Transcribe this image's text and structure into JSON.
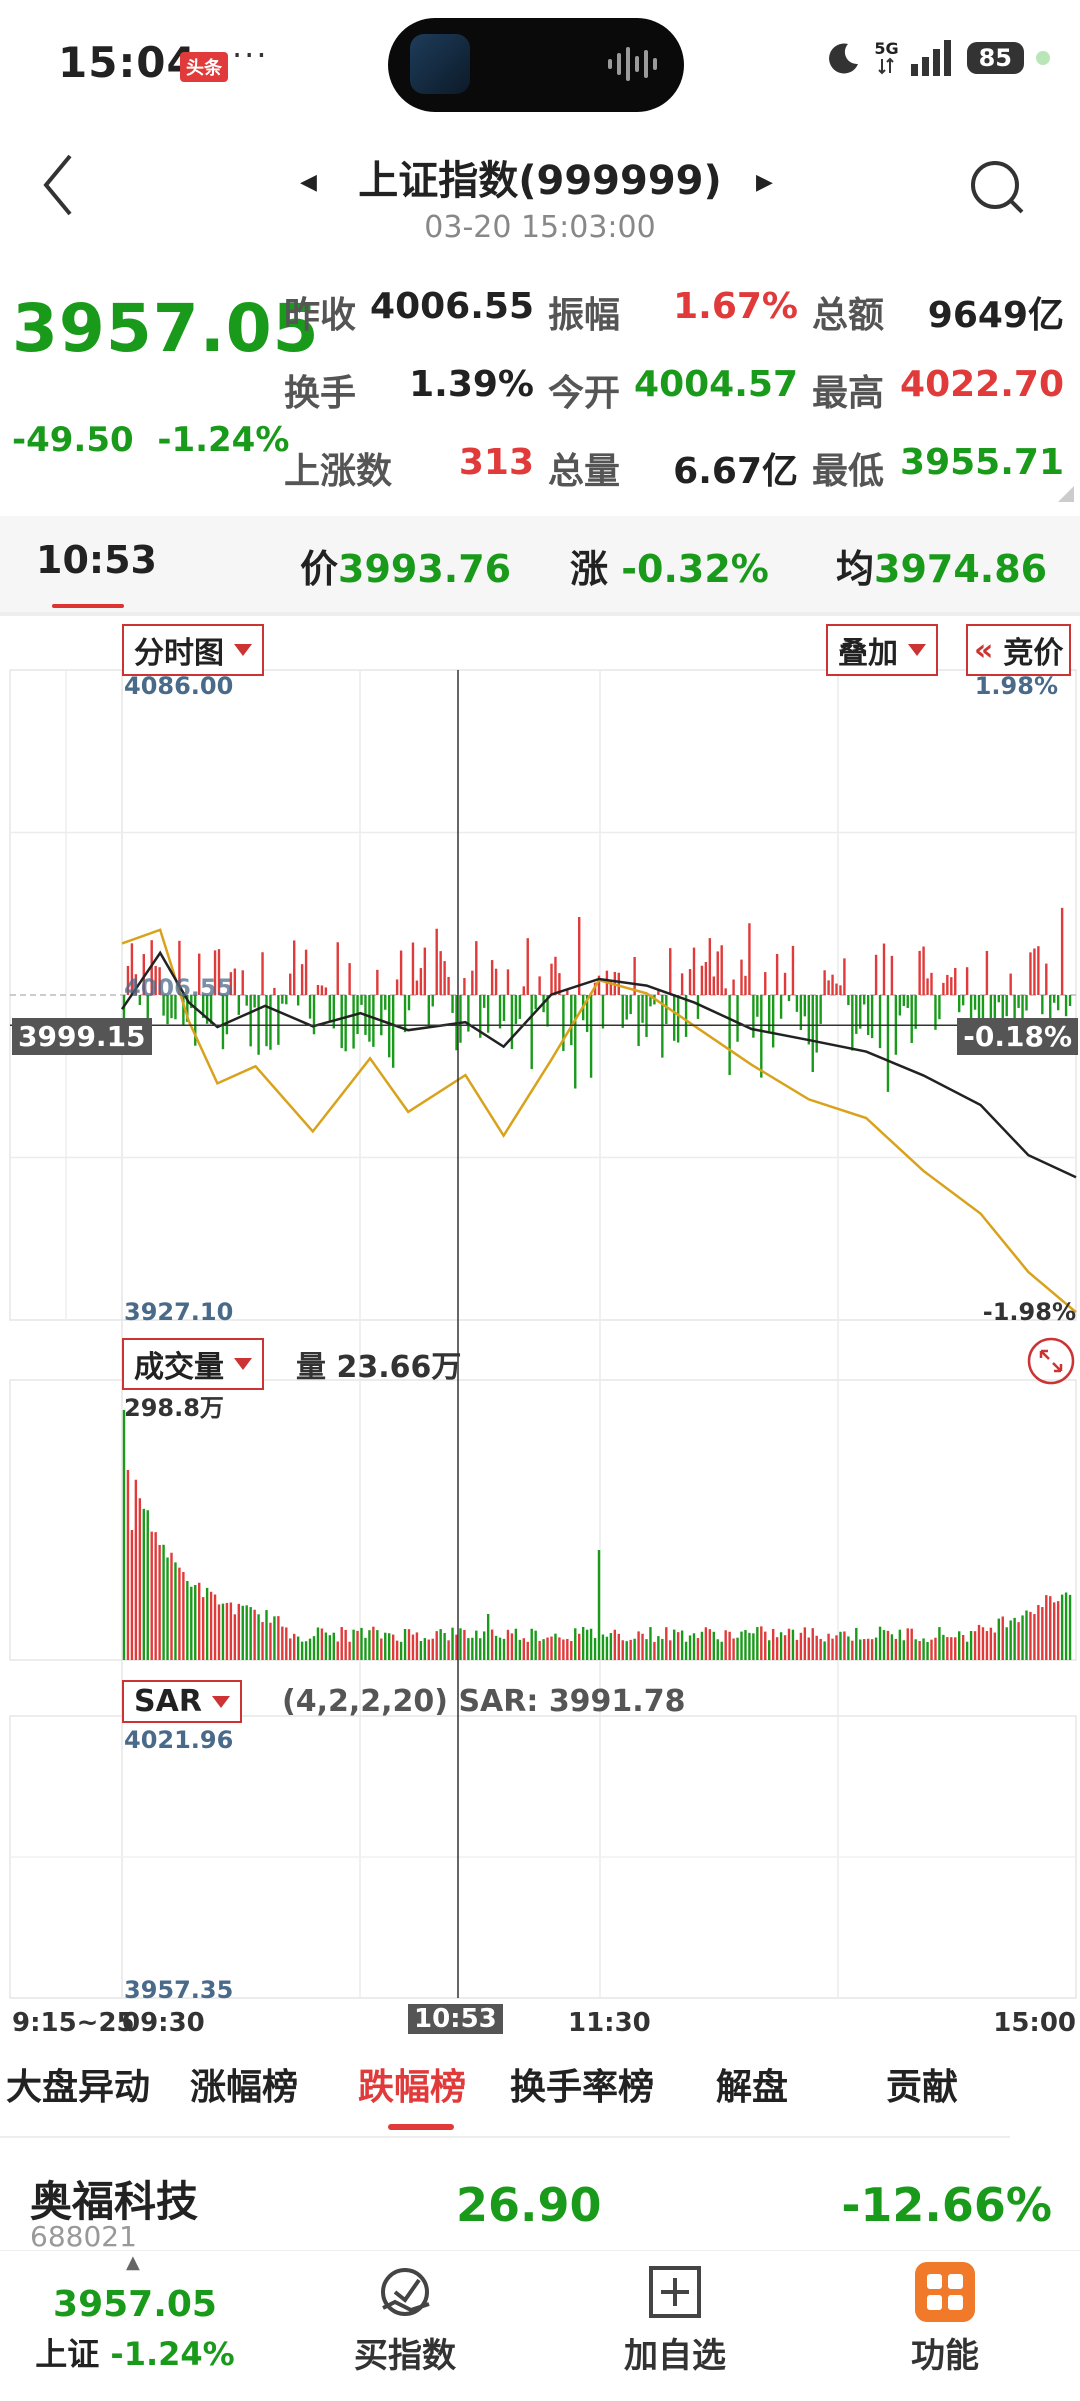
{
  "status_bar": {
    "time": "15:04",
    "toutiao_badge": "头条",
    "more": "···",
    "signal_label": "5G",
    "battery": "85"
  },
  "header": {
    "title": "上证指数(999999)",
    "datetime": "03-20 15:03:00"
  },
  "quote": {
    "price": "3957.05",
    "change": "-49.50",
    "change_pct": "-1.24%",
    "rows": [
      [
        {
          "label": "昨收",
          "value": "4006.55",
          "color": "dark"
        },
        {
          "label": "振幅",
          "value": "1.67%",
          "color": "red"
        },
        {
          "label": "总额",
          "value": "9649亿",
          "color": "dark"
        }
      ],
      [
        {
          "label": "换手",
          "value": "1.39%",
          "color": "dark"
        },
        {
          "label": "今开",
          "value": "4004.57",
          "color": "green"
        },
        {
          "label": "最高",
          "value": "4022.70",
          "color": "red"
        }
      ],
      [
        {
          "label": "上涨数",
          "value": "313",
          "color": "red"
        },
        {
          "label": "总量",
          "value": "6.67亿",
          "color": "dark"
        },
        {
          "label": "最低",
          "value": "3955.71",
          "color": "green"
        }
      ]
    ]
  },
  "crosshair": {
    "time": "10:53",
    "price_label": "价",
    "price": "3993.76",
    "change_label": "涨",
    "change": "-0.32%",
    "avg_label": "均",
    "avg": "3974.86"
  },
  "intraday": {
    "mode_label": "分时图",
    "overlay_label": "叠加",
    "auction_label": "竞价",
    "auction_prefix": "«",
    "y_top": "4086.00",
    "y_mid": "4006.55",
    "y_bottom": "3927.10",
    "pct_top": "1.98%",
    "pct_bottom": "-1.98%",
    "cursor_price": "3999.15",
    "cursor_pct": "-0.18%"
  },
  "volume": {
    "label": "成交量",
    "volume_label": "量",
    "volume_value": "23.66万",
    "y_top": "298.8万"
  },
  "sar": {
    "label": "SAR",
    "params": "(4,2,2,20)",
    "value_label": "SAR:",
    "value": "3991.78",
    "y_top": "4021.96",
    "y_bottom": "3957.35"
  },
  "time_axis": {
    "pre": "9:15~25",
    "open": "09:30",
    "cursor": "10:53",
    "mid": "11:30",
    "close": "15:00"
  },
  "rank_tabs": [
    "大盘异动",
    "涨幅榜",
    "跌幅榜",
    "换手率榜",
    "解盘",
    "贡献"
  ],
  "active_rank_tab": 2,
  "top_stock": {
    "name": "奥福科技",
    "code": "688021",
    "price": "26.90",
    "change_pct": "-12.66%"
  },
  "bottom_bar": {
    "index_price": "3957.05",
    "index_name": "上证",
    "index_change": "-1.24%",
    "buy_index": "买指数",
    "add_watch": "加自选",
    "functions": "功能"
  },
  "colors": {
    "up": "#e03a3a",
    "down": "#1a9a1a",
    "price_line": "#222222",
    "avg_line": "#d9a21c",
    "accent": "#f07a2a"
  }
}
